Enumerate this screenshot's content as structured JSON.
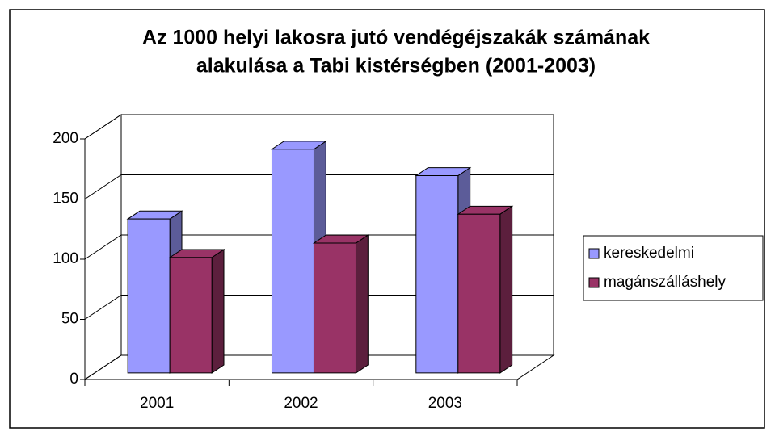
{
  "chart_data": {
    "type": "bar3d",
    "title": [
      "Az 1000 helyi lakosra jutó vendégéjszakák számának",
      "alakulása a Tabi kistérségben (2001-2003)"
    ],
    "categories": [
      "2001",
      "2002",
      "2003"
    ],
    "series": [
      {
        "name": "kereskedelmi",
        "color": "#9999ff",
        "side": "#5c5c99",
        "values": [
          128,
          186,
          164
        ]
      },
      {
        "name": "magánszálláshely",
        "color": "#993366",
        "side": "#5c1f3d",
        "values": [
          96,
          108,
          132
        ]
      }
    ],
    "ylim": [
      0,
      200
    ],
    "yticks": [
      0,
      50,
      100,
      150,
      200
    ],
    "grid": true,
    "legend": "right"
  }
}
